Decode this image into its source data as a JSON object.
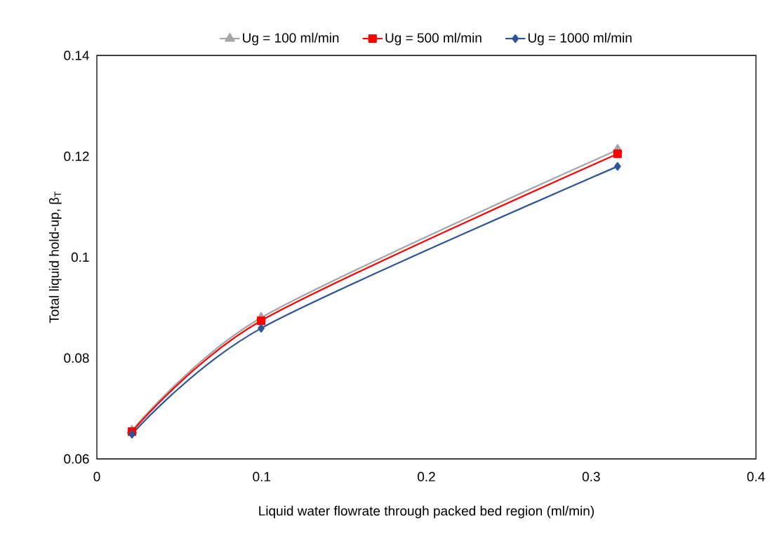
{
  "chart_data": {
    "type": "line",
    "xlabel": "Liquid water flowrate through packed bed region (ml/min)",
    "ylabel": "Total liquid hold-up, β$_{T}$",
    "x": [
      0.0213,
      0.0997,
      0.316
    ],
    "series": [
      {
        "name": "Ug = 100 ml/min",
        "color": "#a5a5a5",
        "marker": "triangle",
        "values": [
          0.0656,
          0.088,
          0.1213
        ]
      },
      {
        "name": "Ug = 500 ml/min",
        "color": "#ff0000",
        "marker": "square",
        "values": [
          0.0654,
          0.0874,
          0.1205
        ]
      },
      {
        "name": "Ug = 1000 ml/min",
        "color": "#2f5597",
        "marker": "diamond",
        "values": [
          0.0649,
          0.0859,
          0.118
        ]
      }
    ],
    "xlim": [
      0,
      0.4
    ],
    "ylim": [
      0.06,
      0.14
    ],
    "xticks": [
      0,
      0.1,
      0.2,
      0.3,
      0.4
    ],
    "yticks": [
      0.06,
      0.08,
      0.1,
      0.12,
      0.14
    ],
    "grid": false,
    "legend": "top",
    "line_style": "solid"
  }
}
